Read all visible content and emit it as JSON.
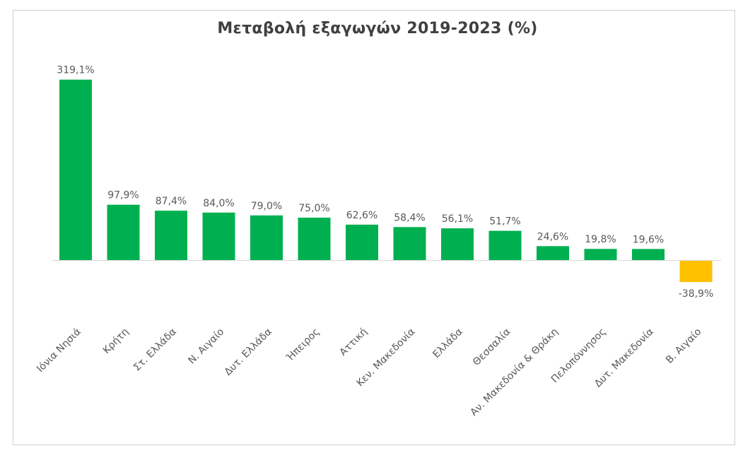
{
  "chart_data": {
    "type": "bar",
    "title": "Μεταβολή εξαγωγών 2019-2023 (%)",
    "xlabel": "",
    "ylabel": "",
    "categories": [
      "Ιόνια Νησιά",
      "Κρήτη",
      "Στ. Ελλάδα",
      "Ν. Αιγαίο",
      "Δυτ. Ελλάδα",
      "Ήπειρος",
      "Αττική",
      "Κεν. Μακεδονία",
      "Ελλάδα",
      "Θεσσαλία",
      "Αν. Μακεδονία & Θράκη",
      "Πελοπόννησος",
      "Δυτ. Μακεδονία",
      "Β. Αιγαίο"
    ],
    "values": [
      319.1,
      97.9,
      87.4,
      84.0,
      79.0,
      75.0,
      62.6,
      58.4,
      56.1,
      51.7,
      24.6,
      19.8,
      19.6,
      -38.9
    ],
    "value_labels": [
      "319,1%",
      "97,9%",
      "87,4%",
      "84,0%",
      "79,0%",
      "75,0%",
      "62,6%",
      "58,4%",
      "56,1%",
      "51,7%",
      "24,6%",
      "19,8%",
      "19,6%",
      "-38,9%"
    ],
    "ylim": [
      -60,
      330
    ],
    "grid": false,
    "legend": "none",
    "colors": {
      "positive": "#00b050",
      "negative": "#ffc000",
      "axis": "#d9d9d9",
      "text": "#595959",
      "title": "#404040"
    }
  }
}
